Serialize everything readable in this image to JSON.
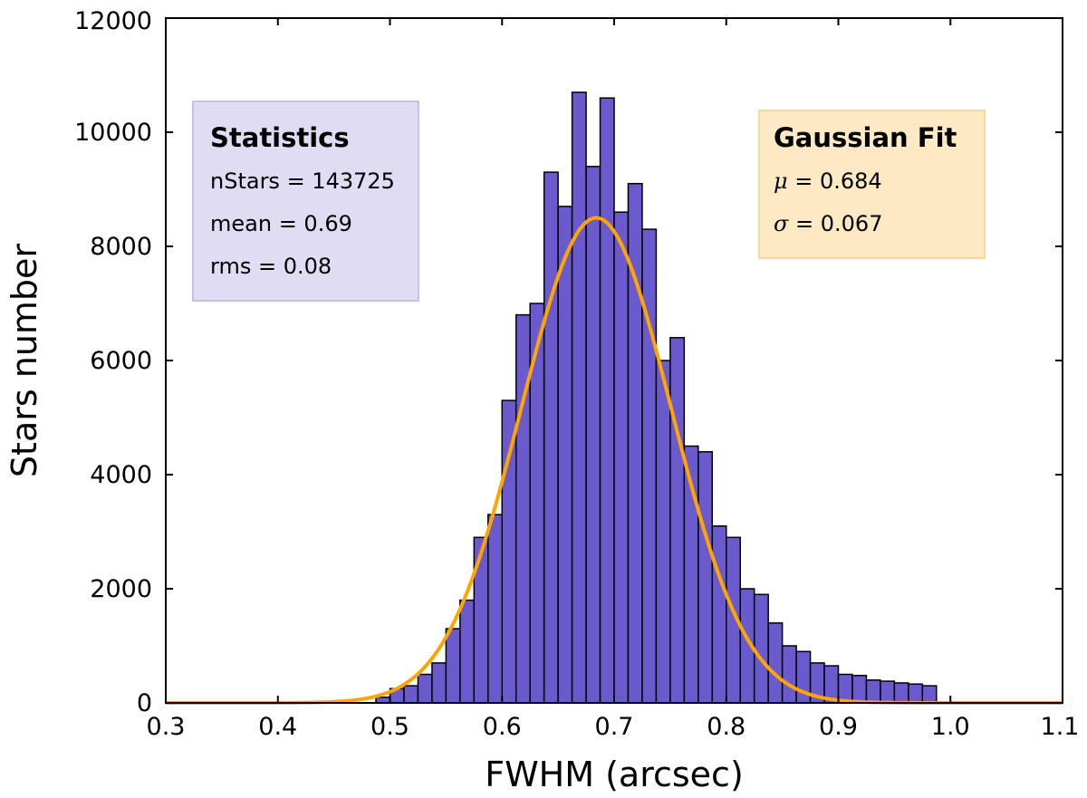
{
  "chart_data": {
    "type": "bar",
    "title": "",
    "xlabel": "FWHM (arcsec)",
    "ylabel": "Stars number",
    "xlim": [
      0.3,
      1.1
    ],
    "ylim": [
      0,
      12000
    ],
    "xticks": [
      "0.3",
      "0.4",
      "0.5",
      "0.6",
      "0.7",
      "0.8",
      "0.9",
      "1.0",
      "1.1"
    ],
    "yticks": [
      "0",
      "2000",
      "4000",
      "6000",
      "8000",
      "10000",
      "12000"
    ],
    "bar_color": "#6a5acd",
    "bin_start": 0.4875,
    "bin_width": 0.0125,
    "values": [
      100,
      250,
      300,
      500,
      700,
      1300,
      1800,
      2900,
      3300,
      5300,
      6800,
      7000,
      9300,
      8700,
      10700,
      9400,
      10600,
      8600,
      9100,
      8300,
      6000,
      6400,
      4500,
      4400,
      3100,
      2900,
      2000,
      1900,
      1400,
      1000,
      900,
      700,
      650,
      500,
      480,
      400,
      380,
      350,
      330,
      300
    ],
    "fit_curve": {
      "name": "Gaussian Fit",
      "color": "#ffa500",
      "amplitude": 8500,
      "mu": 0.684,
      "sigma": 0.067
    }
  },
  "stats_box": {
    "title": "Statistics",
    "line1": "nStars = 143725",
    "line2": "mean = 0.69",
    "line3": "rms = 0.08",
    "fill": "#e0dcf4",
    "border": "#c8c0ec"
  },
  "fit_box": {
    "title": "Gaussian Fit",
    "mu_symbol": "μ",
    "mu_value": " = 0.684",
    "sigma_symbol": "σ",
    "sigma_value": " = 0.067",
    "fill": "#fde9c4",
    "border": "#f9d898"
  }
}
